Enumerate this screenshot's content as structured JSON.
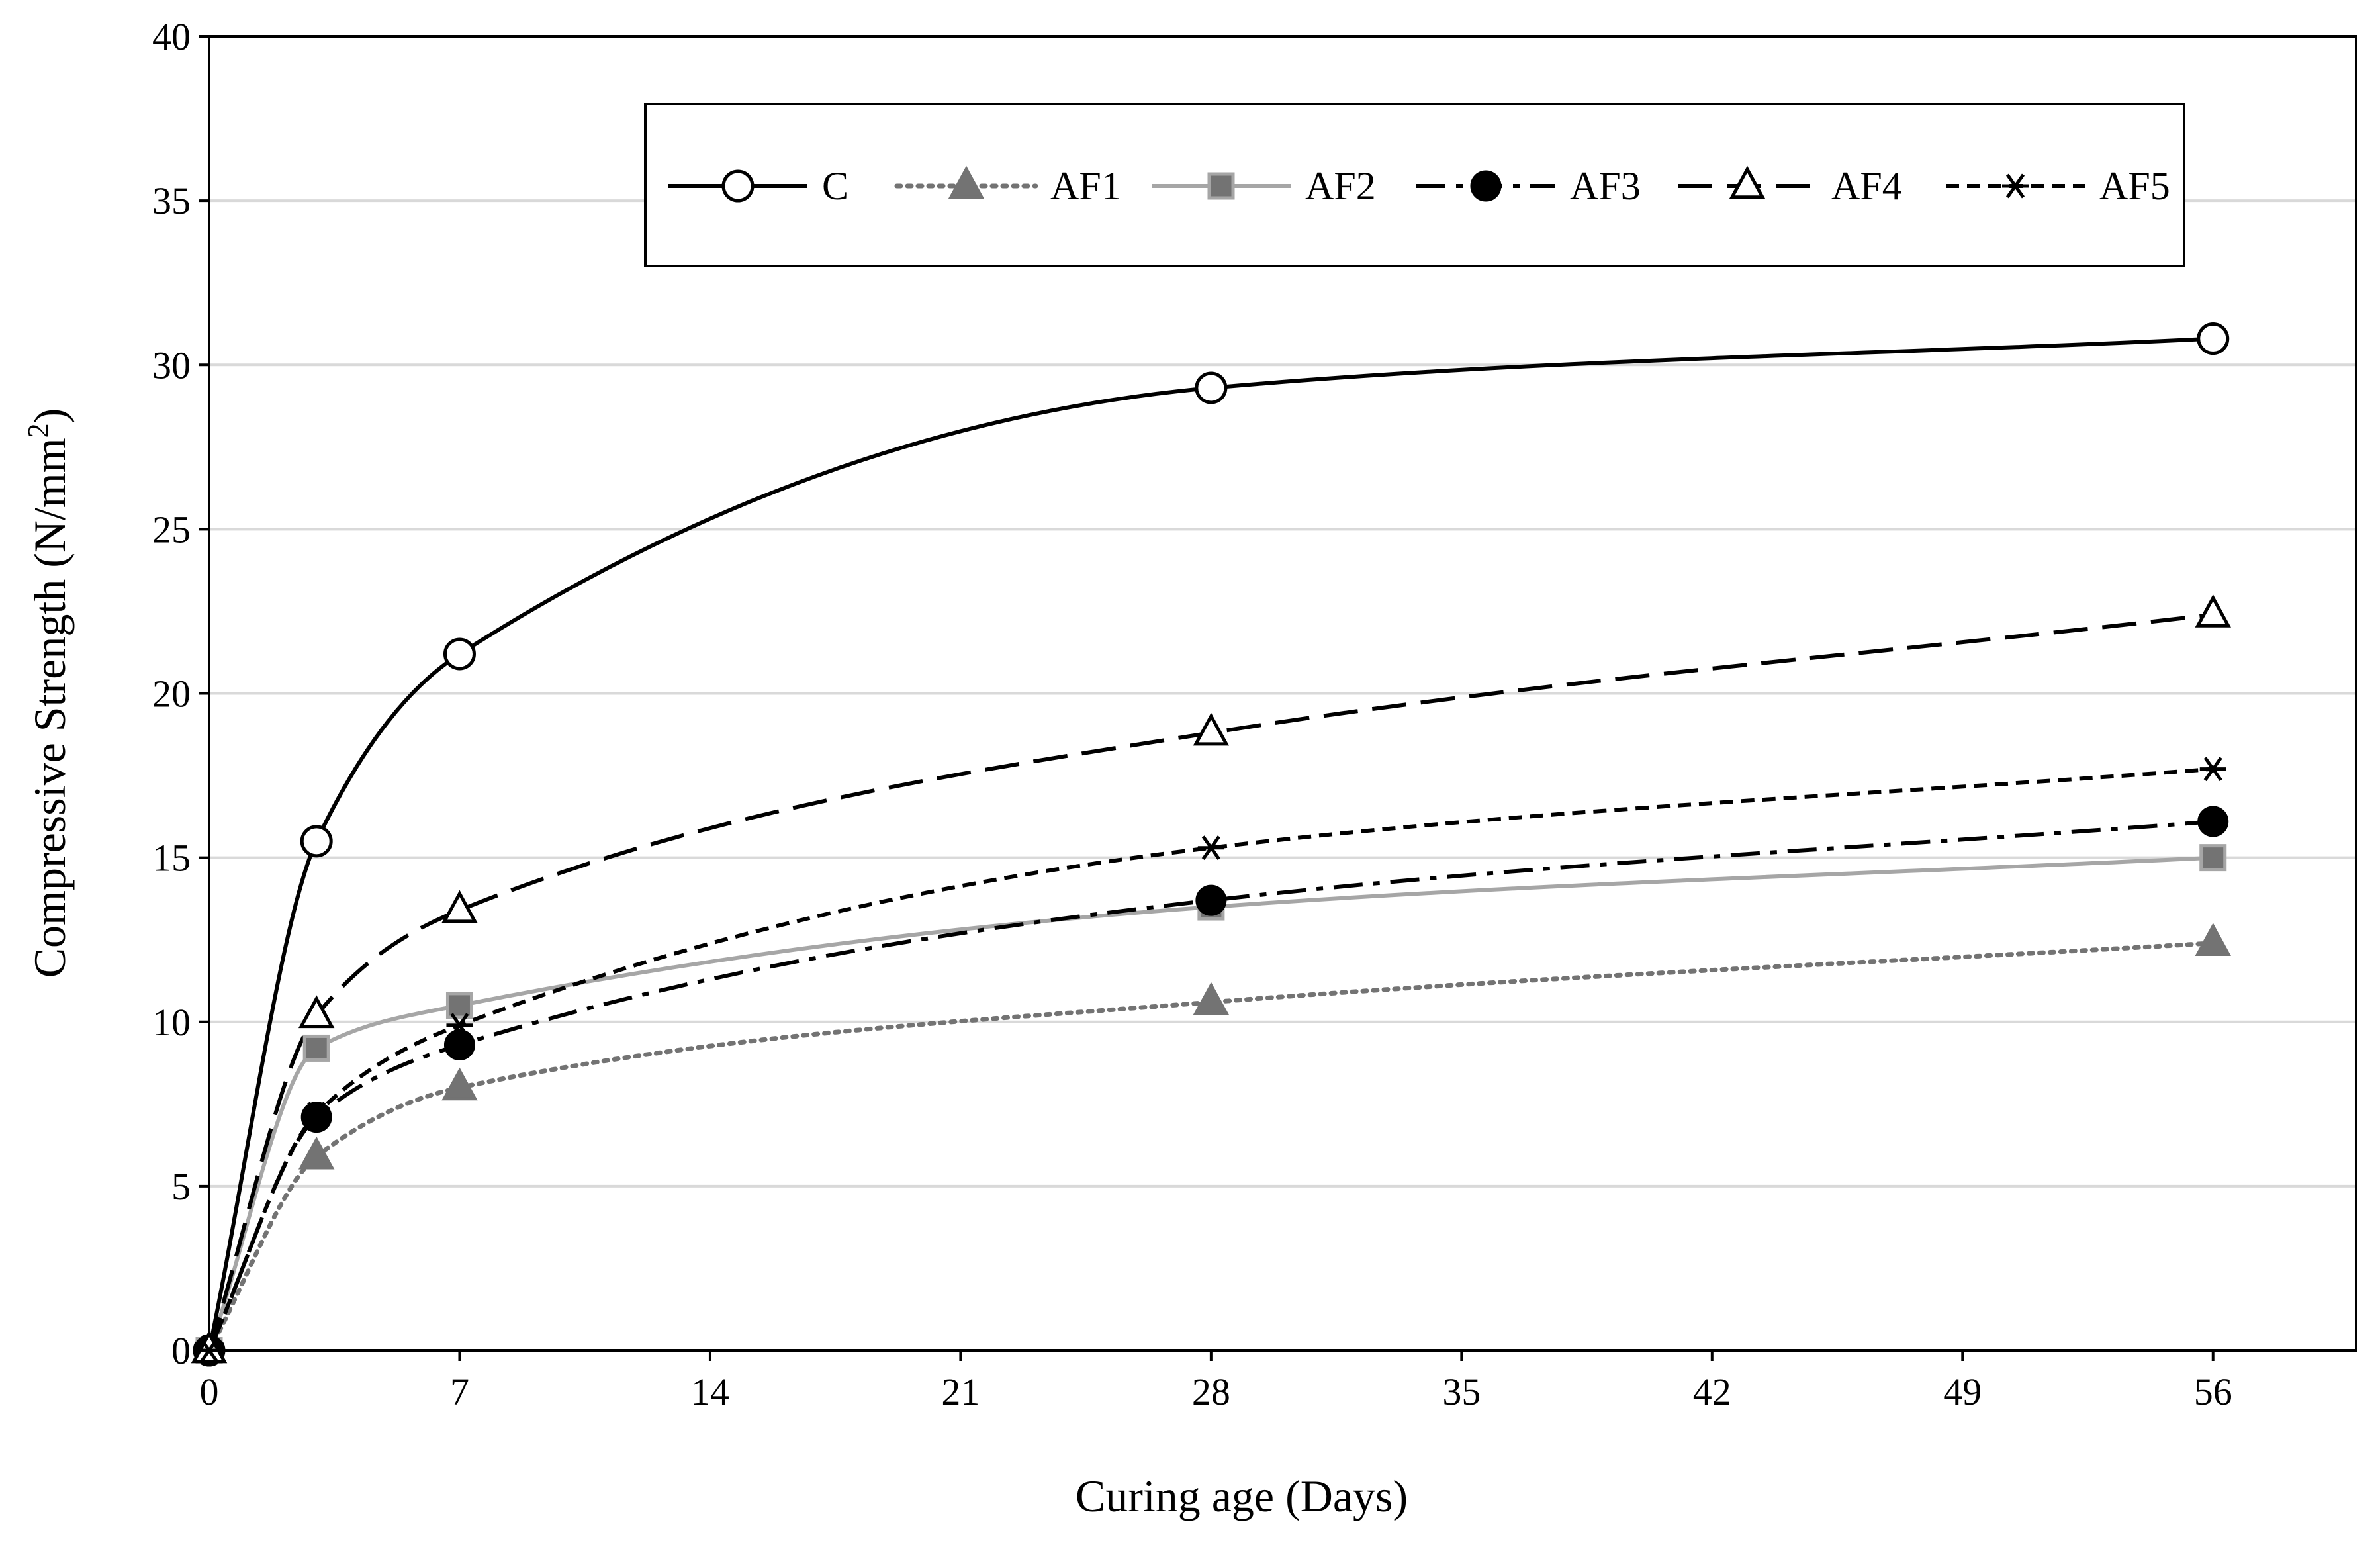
{
  "chart_data": {
    "type": "line",
    "title": "",
    "xlabel": "Curing age (Days)",
    "ylabel_main": "Compressive Strength (N/mm",
    "ylabel_sup": "2",
    "ylabel_close": ")",
    "xlim": [
      0,
      60
    ],
    "ylim": [
      0,
      40
    ],
    "xticks": [
      0,
      7,
      14,
      21,
      28,
      35,
      42,
      49,
      56
    ],
    "xtick_labels": [
      "0",
      "7",
      "14",
      "21",
      "28",
      "35",
      "42",
      "49",
      "56"
    ],
    "yticks": [
      0,
      5,
      10,
      15,
      20,
      25,
      30,
      35,
      40
    ],
    "ytick_labels": [
      "0",
      "5",
      "10",
      "15",
      "20",
      "25",
      "30",
      "35",
      "40"
    ],
    "grid": "horizontal",
    "legend_position": "top",
    "x": [
      0,
      3,
      7,
      28,
      56
    ],
    "series": [
      {
        "name": "C",
        "values": [
          0,
          15.5,
          21.2,
          29.3,
          30.8
        ],
        "color": "#000000",
        "marker": "circle-open",
        "line": "solid"
      },
      {
        "name": "AF1",
        "values": [
          0,
          5.9,
          8.0,
          10.6,
          12.4
        ],
        "color": "#737373",
        "marker": "triangle-filled",
        "line": "dotted"
      },
      {
        "name": "AF2",
        "values": [
          0,
          9.2,
          10.5,
          13.5,
          15.0
        ],
        "color": "#a6a6a6",
        "marker": "square-filled",
        "line": "solid"
      },
      {
        "name": "AF3",
        "values": [
          0,
          7.1,
          9.3,
          13.7,
          16.1
        ],
        "color": "#000000",
        "marker": "circle-filled",
        "line": "dashdot"
      },
      {
        "name": "AF4",
        "values": [
          0,
          10.2,
          13.4,
          18.8,
          22.4
        ],
        "color": "#000000",
        "marker": "triangle-open",
        "line": "longdash"
      },
      {
        "name": "AF5",
        "values": [
          0,
          7.2,
          9.9,
          15.3,
          17.7
        ],
        "color": "#000000",
        "marker": "asterisk",
        "line": "shortdash"
      }
    ]
  }
}
